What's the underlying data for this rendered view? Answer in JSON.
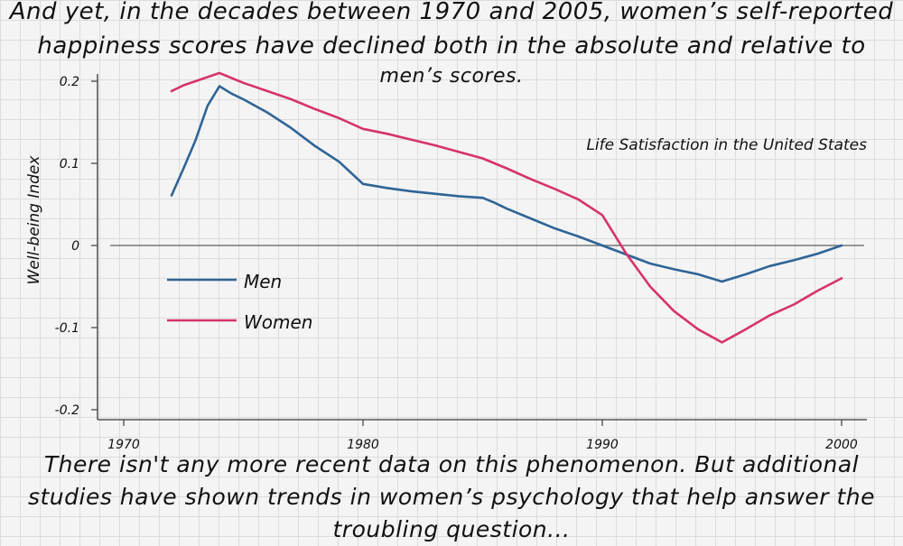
{
  "caption_top": {
    "line1": "And yet, in the decades between 1970 and 2005, women’s self-reported",
    "line2": "happiness scores have declined both in the absolute and relative to",
    "line3": "men’s scores."
  },
  "caption_bottom": {
    "line1": "There isn't any more recent data on this phenomenon. But additional",
    "line2": "studies have shown trends in women’s psychology that help answer the",
    "line3": "troubling question..."
  },
  "chart_data": {
    "type": "line",
    "title": "Life Satisfaction in the United States",
    "xlabel": "",
    "ylabel": "Well-being Index",
    "xlim": [
      1967,
      2001
    ],
    "ylim": [
      -0.21,
      0.21
    ],
    "x_ticks": [
      1970,
      1980,
      1990,
      2000
    ],
    "y_ticks": [
      0.2,
      0.1,
      0,
      -0.1,
      -0.2
    ],
    "y_tick_labels": [
      "0.2",
      "0.1",
      "0",
      "-0.1",
      "-0.2"
    ],
    "zero_line": true,
    "legend_position": "left",
    "series": [
      {
        "name": "Men",
        "color": "#2f6496",
        "x": [
          1972,
          1972.5,
          1973,
          1973.5,
          1974,
          1974.5,
          1975,
          1976,
          1977,
          1978,
          1979,
          1980,
          1981,
          1982,
          1983,
          1984,
          1985,
          1985.5,
          1986,
          1987,
          1988,
          1989,
          1990,
          1991,
          1992,
          1993,
          1994,
          1995,
          1996,
          1997,
          1998,
          1999,
          2000
        ],
        "values": [
          0.061,
          0.094,
          0.128,
          0.17,
          0.194,
          0.185,
          0.178,
          0.162,
          0.143,
          0.121,
          0.102,
          0.075,
          0.07,
          0.066,
          0.063,
          0.06,
          0.058,
          0.052,
          0.045,
          0.033,
          0.021,
          0.011,
          0.0,
          -0.011,
          -0.022,
          -0.029,
          -0.035,
          -0.044,
          -0.035,
          -0.025,
          -0.018,
          -0.01,
          0.0
        ]
      },
      {
        "name": "Women",
        "color": "#d6336c",
        "x": [
          1972,
          1972.5,
          1973,
          1974,
          1975,
          1976,
          1977,
          1978,
          1979,
          1980,
          1981,
          1982,
          1983,
          1984,
          1985,
          1986,
          1987,
          1988,
          1989,
          1990,
          1991,
          1992,
          1993,
          1994,
          1995,
          1996,
          1997,
          1998,
          1999,
          2000
        ],
        "values": [
          0.188,
          0.195,
          0.2,
          0.21,
          0.198,
          0.188,
          0.178,
          0.166,
          0.155,
          0.142,
          0.136,
          0.129,
          0.122,
          0.114,
          0.106,
          0.094,
          0.081,
          0.069,
          0.056,
          0.037,
          -0.01,
          -0.05,
          -0.08,
          -0.102,
          -0.118,
          -0.102,
          -0.085,
          -0.072,
          -0.055,
          -0.04
        ]
      }
    ]
  }
}
